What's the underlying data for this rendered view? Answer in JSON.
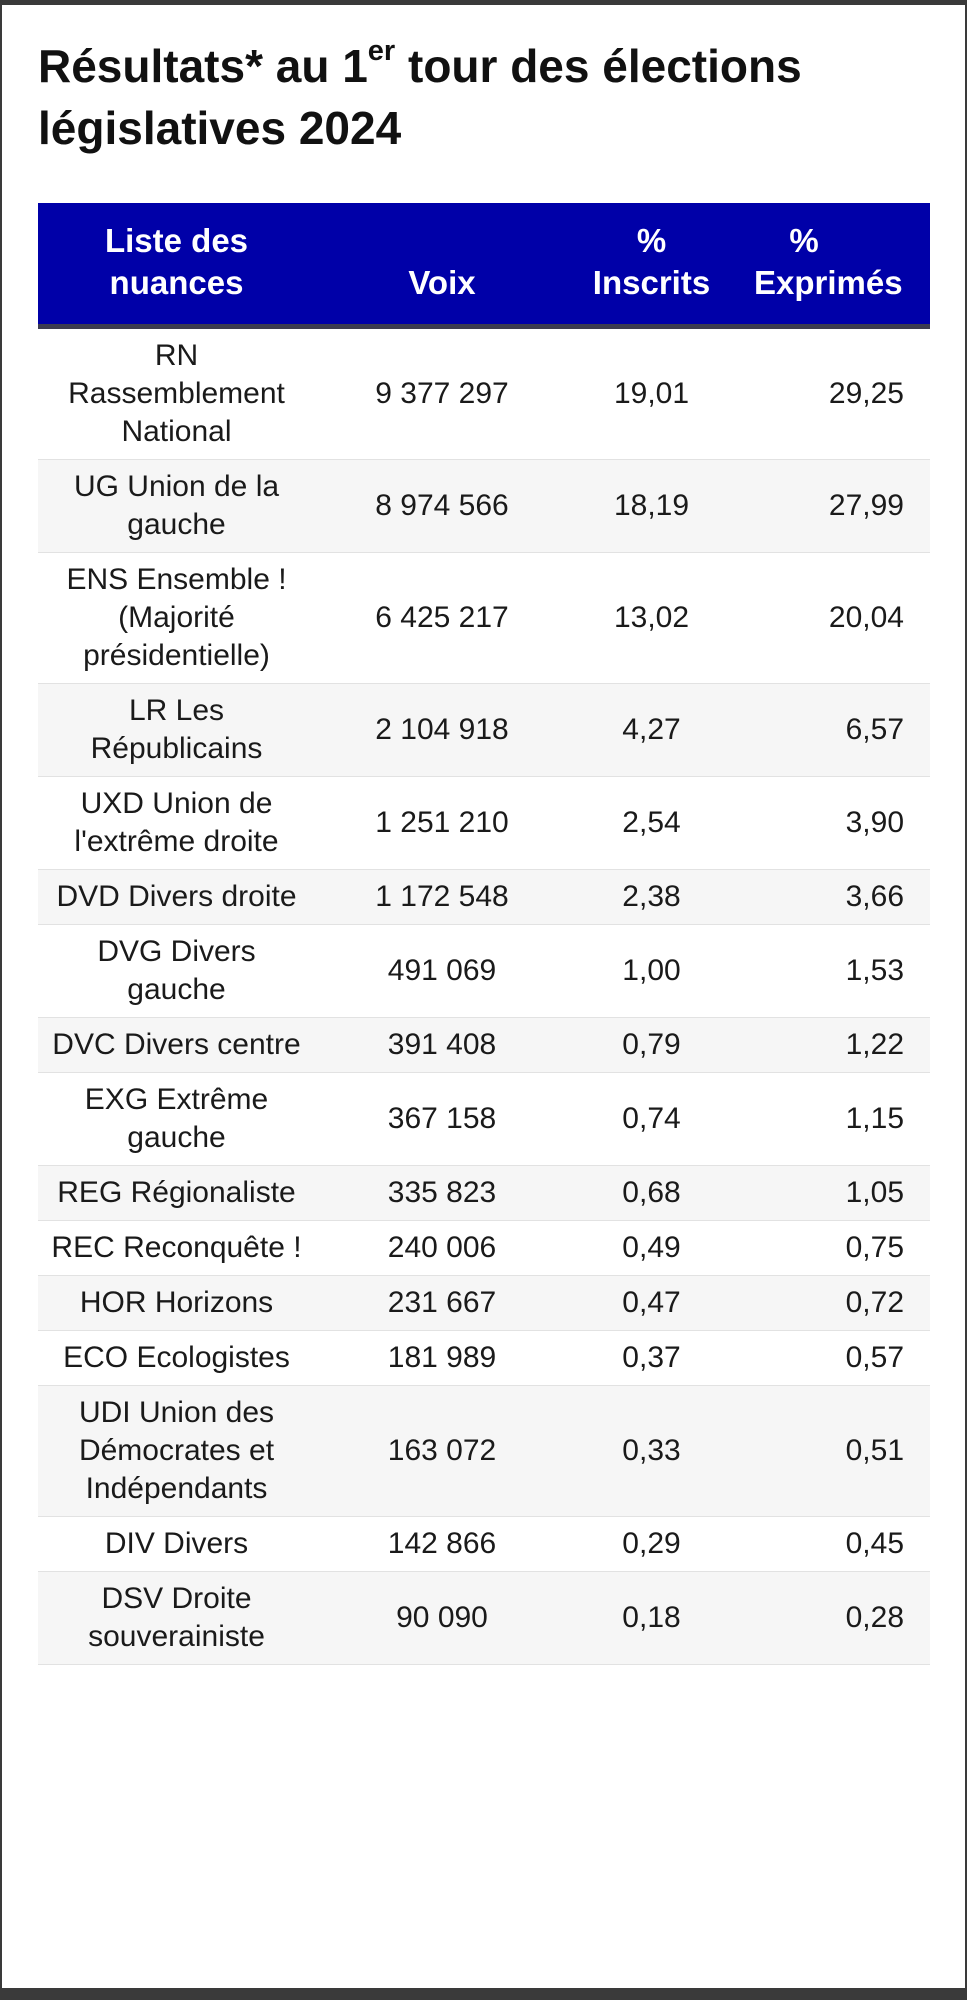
{
  "title": {
    "part1": "Résultats* au 1",
    "sup": "er",
    "part2": " tour des élections législatives 2024"
  },
  "table": {
    "headers": {
      "nuance": "Liste des nuances",
      "voix": "Voix",
      "inscrits_line1": "%",
      "inscrits_line2": "Inscrits",
      "exprimes_line1": "%",
      "exprimes_line2": "Exprimés"
    },
    "rows": [
      {
        "nuance": "RN Rassemblement National",
        "voix": "9 377 297",
        "inscrits": "19,01",
        "exprimes": "29,25"
      },
      {
        "nuance": "UG Union de la gauche",
        "voix": "8 974 566",
        "inscrits": "18,19",
        "exprimes": "27,99"
      },
      {
        "nuance": "ENS Ensemble ! (Majorité présidentielle)",
        "voix": "6 425 217",
        "inscrits": "13,02",
        "exprimes": "20,04"
      },
      {
        "nuance": "LR Les Républicains",
        "voix": "2 104 918",
        "inscrits": "4,27",
        "exprimes": "6,57"
      },
      {
        "nuance": "UXD Union de l'extrême droite",
        "voix": "1 251 210",
        "inscrits": "2,54",
        "exprimes": "3,90"
      },
      {
        "nuance": "DVD Divers droite",
        "voix": "1 172 548",
        "inscrits": "2,38",
        "exprimes": "3,66"
      },
      {
        "nuance": "DVG Divers gauche",
        "voix": "491 069",
        "inscrits": "1,00",
        "exprimes": "1,53"
      },
      {
        "nuance": "DVC Divers centre",
        "voix": "391 408",
        "inscrits": "0,79",
        "exprimes": "1,22"
      },
      {
        "nuance": "EXG Extrême gauche",
        "voix": "367 158",
        "inscrits": "0,74",
        "exprimes": "1,15"
      },
      {
        "nuance": "REG Régionaliste",
        "voix": "335 823",
        "inscrits": "0,68",
        "exprimes": "1,05"
      },
      {
        "nuance": "REC Reconquête !",
        "voix": "240 006",
        "inscrits": "0,49",
        "exprimes": "0,75"
      },
      {
        "nuance": "HOR Horizons",
        "voix": "231 667",
        "inscrits": "0,47",
        "exprimes": "0,72"
      },
      {
        "nuance": "ECO Ecologistes",
        "voix": "181 989",
        "inscrits": "0,37",
        "exprimes": "0,57"
      },
      {
        "nuance": "UDI Union des Démocrates et Indépendants",
        "voix": "163 072",
        "inscrits": "0,33",
        "exprimes": "0,51"
      },
      {
        "nuance": "DIV Divers",
        "voix": "142 866",
        "inscrits": "0,29",
        "exprimes": "0,45"
      },
      {
        "nuance": "DSV Droite souverainiste",
        "voix": "90 090",
        "inscrits": "0,18",
        "exprimes": "0,28"
      }
    ]
  }
}
